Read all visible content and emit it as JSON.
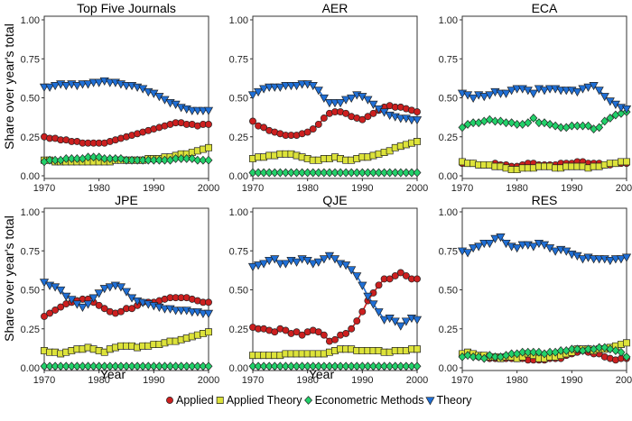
{
  "colors": {
    "Applied": "#cc1f1f",
    "Applied Theory": "#dde33a",
    "Econometric Methods": "#22d16a",
    "Theory": "#1f6fd6"
  },
  "chart_data": {
    "type": "line",
    "layout": "2x3 facet grid",
    "xlabel": "Year",
    "ylabel": "Share over year's total",
    "xlim": [
      1970,
      2000
    ],
    "ylim": [
      0,
      1
    ],
    "x_ticks": [
      1970,
      1980,
      1990,
      2000
    ],
    "y_ticks": [
      "0.00",
      "0.25",
      "0.50",
      "0.75",
      "1.00"
    ],
    "legend_position": "bottom",
    "legend": [
      "Applied",
      "Applied Theory",
      "Econometric Methods",
      "Theory"
    ],
    "markers": {
      "Applied": "circle",
      "Applied Theory": "square",
      "Econometric Methods": "diamond",
      "Theory": "triangle-down"
    },
    "x": [
      1970,
      1971,
      1972,
      1973,
      1974,
      1975,
      1976,
      1977,
      1978,
      1979,
      1980,
      1981,
      1982,
      1983,
      1984,
      1985,
      1986,
      1987,
      1988,
      1989,
      1990,
      1991,
      1992,
      1993,
      1994,
      1995,
      1996,
      1997,
      1998,
      1999,
      2000
    ],
    "panels": [
      {
        "title": "Top Five Journals",
        "series": [
          {
            "name": "Applied",
            "values": [
              0.25,
              0.24,
              0.24,
              0.23,
              0.23,
              0.22,
              0.22,
              0.21,
              0.21,
              0.21,
              0.21,
              0.21,
              0.22,
              0.23,
              0.24,
              0.25,
              0.26,
              0.27,
              0.28,
              0.29,
              0.3,
              0.31,
              0.32,
              0.33,
              0.34,
              0.34,
              0.33,
              0.33,
              0.32,
              0.33,
              0.33
            ]
          },
          {
            "name": "Applied Theory",
            "values": [
              0.1,
              0.1,
              0.09,
              0.09,
              0.09,
              0.09,
              0.09,
              0.09,
              0.09,
              0.09,
              0.09,
              0.09,
              0.09,
              0.1,
              0.1,
              0.1,
              0.1,
              0.1,
              0.1,
              0.11,
              0.11,
              0.11,
              0.12,
              0.12,
              0.13,
              0.14,
              0.14,
              0.15,
              0.16,
              0.17,
              0.18
            ]
          },
          {
            "name": "Econometric Methods",
            "values": [
              0.09,
              0.1,
              0.1,
              0.1,
              0.11,
              0.11,
              0.11,
              0.11,
              0.12,
              0.12,
              0.12,
              0.11,
              0.11,
              0.11,
              0.11,
              0.1,
              0.1,
              0.1,
              0.1,
              0.1,
              0.1,
              0.1,
              0.1,
              0.1,
              0.11,
              0.11,
              0.11,
              0.11,
              0.1,
              0.1,
              0.1
            ]
          },
          {
            "name": "Theory",
            "values": [
              0.57,
              0.57,
              0.58,
              0.59,
              0.58,
              0.59,
              0.58,
              0.59,
              0.59,
              0.6,
              0.6,
              0.61,
              0.6,
              0.6,
              0.59,
              0.58,
              0.58,
              0.57,
              0.56,
              0.54,
              0.53,
              0.51,
              0.49,
              0.47,
              0.46,
              0.44,
              0.43,
              0.42,
              0.42,
              0.42,
              0.42
            ]
          }
        ]
      },
      {
        "title": "AER",
        "series": [
          {
            "name": "Applied",
            "values": [
              0.35,
              0.32,
              0.31,
              0.29,
              0.28,
              0.27,
              0.26,
              0.26,
              0.26,
              0.27,
              0.28,
              0.3,
              0.33,
              0.37,
              0.4,
              0.41,
              0.41,
              0.4,
              0.38,
              0.37,
              0.36,
              0.38,
              0.4,
              0.42,
              0.44,
              0.45,
              0.44,
              0.44,
              0.43,
              0.42,
              0.41
            ]
          },
          {
            "name": "Applied Theory",
            "values": [
              0.11,
              0.12,
              0.12,
              0.13,
              0.13,
              0.14,
              0.14,
              0.14,
              0.13,
              0.12,
              0.11,
              0.1,
              0.1,
              0.11,
              0.11,
              0.12,
              0.11,
              0.1,
              0.1,
              0.11,
              0.12,
              0.12,
              0.13,
              0.14,
              0.15,
              0.16,
              0.18,
              0.19,
              0.2,
              0.21,
              0.22
            ]
          },
          {
            "name": "Econometric Methods",
            "values": [
              0.02,
              0.02,
              0.02,
              0.02,
              0.02,
              0.02,
              0.02,
              0.02,
              0.02,
              0.02,
              0.02,
              0.02,
              0.02,
              0.02,
              0.02,
              0.02,
              0.02,
              0.02,
              0.02,
              0.02,
              0.02,
              0.02,
              0.02,
              0.02,
              0.02,
              0.02,
              0.02,
              0.02,
              0.02,
              0.02,
              0.02
            ]
          },
          {
            "name": "Theory",
            "values": [
              0.52,
              0.54,
              0.56,
              0.57,
              0.57,
              0.57,
              0.58,
              0.58,
              0.58,
              0.59,
              0.59,
              0.58,
              0.55,
              0.5,
              0.47,
              0.47,
              0.47,
              0.49,
              0.5,
              0.52,
              0.51,
              0.49,
              0.46,
              0.43,
              0.41,
              0.39,
              0.38,
              0.37,
              0.37,
              0.36,
              0.36
            ]
          }
        ]
      },
      {
        "title": "ECA",
        "series": [
          {
            "name": "Applied",
            "values": [
              0.08,
              0.08,
              0.08,
              0.07,
              0.07,
              0.07,
              0.08,
              0.07,
              0.07,
              0.06,
              0.06,
              0.07,
              0.08,
              0.08,
              0.07,
              0.07,
              0.07,
              0.07,
              0.08,
              0.08,
              0.08,
              0.09,
              0.09,
              0.08,
              0.08,
              0.08,
              0.07,
              0.07,
              0.08,
              0.08,
              0.08
            ]
          },
          {
            "name": "Applied Theory",
            "values": [
              0.09,
              0.08,
              0.08,
              0.07,
              0.07,
              0.07,
              0.06,
              0.06,
              0.05,
              0.04,
              0.04,
              0.05,
              0.05,
              0.05,
              0.06,
              0.06,
              0.06,
              0.05,
              0.05,
              0.06,
              0.06,
              0.06,
              0.06,
              0.05,
              0.06,
              0.06,
              0.07,
              0.08,
              0.08,
              0.09,
              0.09
            ]
          },
          {
            "name": "Econometric Methods",
            "values": [
              0.31,
              0.33,
              0.34,
              0.34,
              0.35,
              0.36,
              0.35,
              0.35,
              0.34,
              0.34,
              0.33,
              0.33,
              0.34,
              0.37,
              0.34,
              0.34,
              0.33,
              0.32,
              0.31,
              0.31,
              0.32,
              0.32,
              0.32,
              0.32,
              0.3,
              0.31,
              0.35,
              0.37,
              0.39,
              0.4,
              0.41
            ]
          },
          {
            "name": "Theory",
            "values": [
              0.53,
              0.52,
              0.5,
              0.52,
              0.51,
              0.52,
              0.54,
              0.53,
              0.53,
              0.55,
              0.56,
              0.56,
              0.55,
              0.53,
              0.56,
              0.55,
              0.56,
              0.56,
              0.55,
              0.55,
              0.55,
              0.54,
              0.56,
              0.57,
              0.58,
              0.55,
              0.51,
              0.48,
              0.46,
              0.44,
              0.43
            ]
          }
        ]
      },
      {
        "title": "JPE",
        "series": [
          {
            "name": "Applied",
            "values": [
              0.33,
              0.35,
              0.37,
              0.39,
              0.41,
              0.42,
              0.43,
              0.44,
              0.44,
              0.42,
              0.4,
              0.38,
              0.36,
              0.35,
              0.36,
              0.38,
              0.38,
              0.4,
              0.42,
              0.42,
              0.42,
              0.43,
              0.44,
              0.45,
              0.45,
              0.45,
              0.45,
              0.44,
              0.43,
              0.42,
              0.42
            ]
          },
          {
            "name": "Applied Theory",
            "values": [
              0.11,
              0.1,
              0.1,
              0.09,
              0.1,
              0.11,
              0.12,
              0.12,
              0.13,
              0.12,
              0.11,
              0.1,
              0.12,
              0.13,
              0.14,
              0.14,
              0.14,
              0.13,
              0.14,
              0.14,
              0.15,
              0.15,
              0.16,
              0.17,
              0.17,
              0.18,
              0.19,
              0.2,
              0.21,
              0.22,
              0.23
            ]
          },
          {
            "name": "Econometric Methods",
            "values": [
              0.01,
              0.01,
              0.01,
              0.01,
              0.01,
              0.01,
              0.01,
              0.01,
              0.01,
              0.01,
              0.01,
              0.01,
              0.01,
              0.01,
              0.01,
              0.01,
              0.01,
              0.01,
              0.01,
              0.01,
              0.01,
              0.01,
              0.01,
              0.01,
              0.01,
              0.01,
              0.01,
              0.01,
              0.01,
              0.01,
              0.01
            ]
          },
          {
            "name": "Theory",
            "values": [
              0.55,
              0.53,
              0.52,
              0.5,
              0.46,
              0.44,
              0.41,
              0.39,
              0.41,
              0.45,
              0.48,
              0.51,
              0.52,
              0.53,
              0.52,
              0.49,
              0.45,
              0.43,
              0.42,
              0.41,
              0.4,
              0.39,
              0.38,
              0.38,
              0.37,
              0.37,
              0.37,
              0.36,
              0.36,
              0.35,
              0.35
            ]
          }
        ]
      },
      {
        "title": "QJE",
        "series": [
          {
            "name": "Applied",
            "values": [
              0.26,
              0.25,
              0.25,
              0.24,
              0.23,
              0.25,
              0.24,
              0.22,
              0.23,
              0.21,
              0.23,
              0.24,
              0.23,
              0.21,
              0.17,
              0.18,
              0.21,
              0.22,
              0.25,
              0.3,
              0.36,
              0.43,
              0.48,
              0.53,
              0.57,
              0.57,
              0.59,
              0.61,
              0.59,
              0.57,
              0.57
            ]
          },
          {
            "name": "Applied Theory",
            "values": [
              0.08,
              0.08,
              0.08,
              0.08,
              0.08,
              0.08,
              0.09,
              0.09,
              0.09,
              0.09,
              0.09,
              0.09,
              0.09,
              0.09,
              0.1,
              0.11,
              0.12,
              0.12,
              0.12,
              0.11,
              0.11,
              0.11,
              0.11,
              0.11,
              0.1,
              0.1,
              0.11,
              0.11,
              0.11,
              0.12,
              0.12
            ]
          },
          {
            "name": "Econometric Methods",
            "values": [
              0.01,
              0.01,
              0.01,
              0.01,
              0.01,
              0.01,
              0.01,
              0.01,
              0.01,
              0.01,
              0.01,
              0.01,
              0.01,
              0.01,
              0.01,
              0.01,
              0.01,
              0.01,
              0.01,
              0.01,
              0.01,
              0.01,
              0.01,
              0.01,
              0.01,
              0.01,
              0.01,
              0.01,
              0.01,
              0.01,
              0.01
            ]
          },
          {
            "name": "Theory",
            "values": [
              0.65,
              0.66,
              0.67,
              0.69,
              0.7,
              0.67,
              0.67,
              0.69,
              0.68,
              0.7,
              0.69,
              0.67,
              0.68,
              0.7,
              0.72,
              0.7,
              0.67,
              0.66,
              0.63,
              0.59,
              0.53,
              0.46,
              0.41,
              0.36,
              0.31,
              0.32,
              0.3,
              0.27,
              0.3,
              0.32,
              0.31
            ]
          }
        ]
      },
      {
        "title": "RES",
        "series": [
          {
            "name": "Applied",
            "values": [
              0.09,
              0.09,
              0.08,
              0.07,
              0.07,
              0.06,
              0.06,
              0.07,
              0.06,
              0.06,
              0.07,
              0.06,
              0.05,
              0.05,
              0.05,
              0.05,
              0.06,
              0.06,
              0.06,
              0.08,
              0.09,
              0.1,
              0.11,
              0.1,
              0.09,
              0.09,
              0.07,
              0.06,
              0.05,
              0.06,
              0.06
            ]
          },
          {
            "name": "Applied Theory",
            "values": [
              0.09,
              0.1,
              0.09,
              0.08,
              0.08,
              0.07,
              0.07,
              0.06,
              0.07,
              0.07,
              0.06,
              0.07,
              0.09,
              0.08,
              0.06,
              0.06,
              0.07,
              0.07,
              0.08,
              0.09,
              0.1,
              0.12,
              0.12,
              0.12,
              0.11,
              0.12,
              0.12,
              0.13,
              0.14,
              0.15,
              0.16
            ]
          },
          {
            "name": "Econometric Methods",
            "values": [
              0.07,
              0.08,
              0.07,
              0.07,
              0.06,
              0.08,
              0.07,
              0.07,
              0.08,
              0.09,
              0.09,
              0.1,
              0.1,
              0.1,
              0.1,
              0.09,
              0.1,
              0.1,
              0.11,
              0.11,
              0.12,
              0.12,
              0.11,
              0.12,
              0.12,
              0.13,
              0.13,
              0.12,
              0.11,
              0.1,
              0.07
            ]
          },
          {
            "name": "Theory",
            "values": [
              0.75,
              0.74,
              0.77,
              0.78,
              0.8,
              0.8,
              0.83,
              0.84,
              0.8,
              0.78,
              0.77,
              0.79,
              0.79,
              0.78,
              0.8,
              0.79,
              0.77,
              0.75,
              0.76,
              0.75,
              0.73,
              0.72,
              0.7,
              0.71,
              0.7,
              0.7,
              0.7,
              0.69,
              0.7,
              0.7,
              0.71
            ]
          }
        ]
      }
    ]
  }
}
